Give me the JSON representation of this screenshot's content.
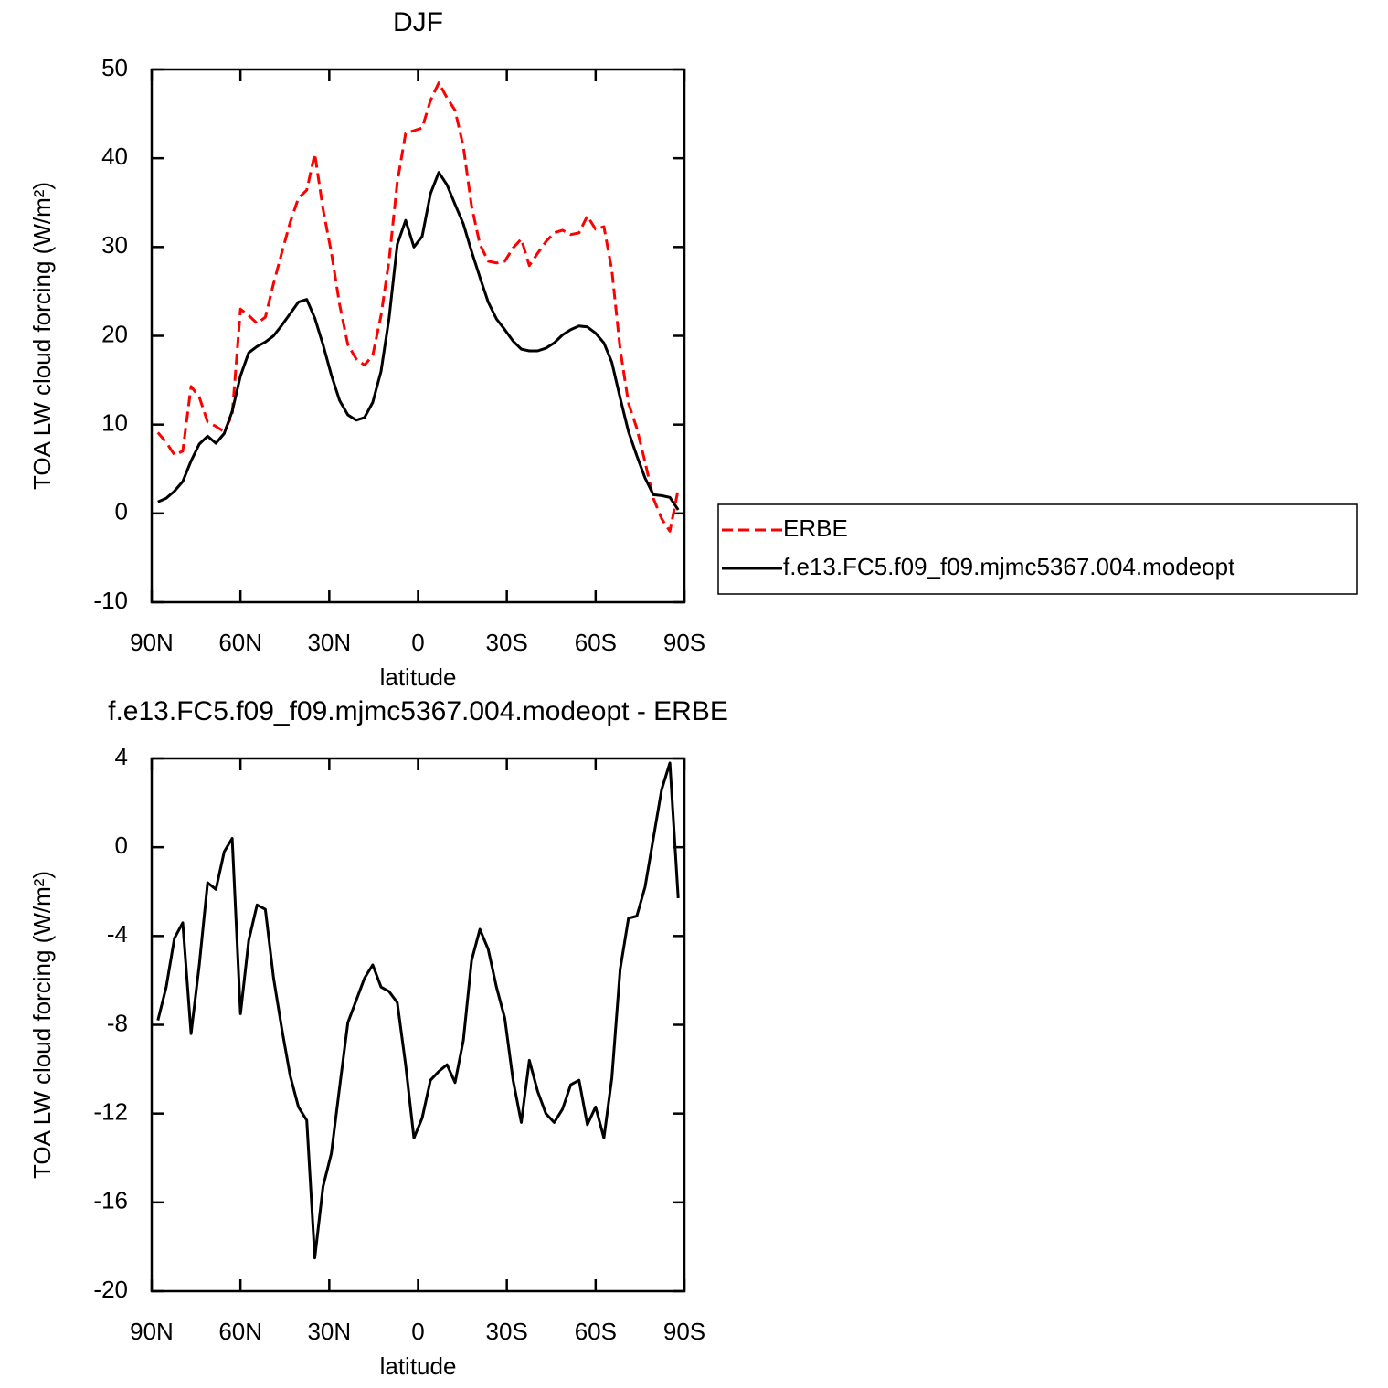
{
  "chart_data": [
    {
      "type": "line",
      "title": "DJF",
      "x": [
        87.9,
        85.1,
        82.3,
        79.5,
        76.7,
        73.9,
        71.1,
        68.3,
        65.5,
        62.8,
        60.0,
        57.2,
        54.4,
        51.6,
        48.8,
        46.0,
        43.2,
        40.4,
        37.6,
        34.9,
        32.1,
        29.3,
        26.5,
        23.7,
        20.9,
        18.1,
        15.3,
        12.5,
        9.8,
        7.0,
        4.2,
        1.4,
        -1.4,
        -4.2,
        -7.0,
        -9.8,
        -12.5,
        -15.3,
        -18.1,
        -20.9,
        -23.7,
        -26.5,
        -29.3,
        -32.1,
        -34.9,
        -37.6,
        -40.4,
        -43.2,
        -46.0,
        -48.8,
        -51.6,
        -54.4,
        -57.2,
        -60.0,
        -62.8,
        -65.5,
        -68.3,
        -71.1,
        -73.9,
        -76.7,
        -79.5,
        -82.3,
        -85.1,
        -87.9
      ],
      "xlim": [
        90,
        -90
      ],
      "xticks": [
        {
          "value": 90,
          "label": "90N"
        },
        {
          "value": 60,
          "label": "60N"
        },
        {
          "value": 30,
          "label": "30N"
        },
        0,
        {
          "value": -30,
          "label": "30S"
        },
        {
          "value": -60,
          "label": "60S"
        },
        {
          "value": -90,
          "label": "90S"
        }
      ],
      "ylim": [
        -10,
        50
      ],
      "yticks": [
        -10,
        0,
        10,
        20,
        30,
        40,
        50
      ],
      "xlabel": "latitude",
      "ylabel": "TOA LW cloud forcing (W/m²)",
      "legend": "outside-right",
      "series": [
        {
          "name": "ERBE",
          "color": "#ff0000",
          "line_style": "dashed",
          "values": [
            9.1,
            8.0,
            6.6,
            7.0,
            14.3,
            13.1,
            10.3,
            9.8,
            9.2,
            11.1,
            23.0,
            22.3,
            21.4,
            22.1,
            25.9,
            29.4,
            32.8,
            35.5,
            36.4,
            40.5,
            34.3,
            29.4,
            23.5,
            19.0,
            17.4,
            16.7,
            17.8,
            22.3,
            28.5,
            37.3,
            42.8,
            43.1,
            43.4,
            46.5,
            48.5,
            46.8,
            45.4,
            41.3,
            34.6,
            30.3,
            28.4,
            28.2,
            28.4,
            29.9,
            30.9,
            27.9,
            29.3,
            30.6,
            31.6,
            31.9,
            31.4,
            31.6,
            33.5,
            32.0,
            32.3,
            27.4,
            18.5,
            12.4,
            9.6,
            5.8,
            1.7,
            -0.6,
            -2.0,
            2.7
          ]
        },
        {
          "name": "f.e13.FC5.f09_f09.mjmc5367.004.modeopt",
          "color": "#000000",
          "line_style": "solid",
          "values": [
            1.3,
            1.7,
            2.5,
            3.6,
            5.9,
            7.8,
            8.7,
            7.9,
            9.0,
            11.5,
            15.5,
            18.1,
            18.8,
            19.3,
            20.0,
            21.2,
            22.5,
            23.8,
            24.1,
            22.0,
            19.0,
            15.6,
            12.7,
            11.1,
            10.5,
            10.8,
            12.5,
            16.0,
            22.0,
            30.3,
            33.0,
            30.0,
            31.2,
            36.0,
            38.4,
            37.0,
            34.8,
            32.6,
            29.5,
            26.6,
            23.8,
            21.9,
            20.7,
            19.4,
            18.5,
            18.3,
            18.3,
            18.6,
            19.2,
            20.1,
            20.7,
            21.1,
            21.0,
            20.3,
            19.2,
            17.0,
            13.0,
            9.2,
            6.5,
            4.0,
            2.1,
            2.0,
            1.8,
            0.4
          ]
        }
      ]
    },
    {
      "type": "line",
      "title": "f.e13.FC5.f09_f09.mjmc5367.004.modeopt - ERBE",
      "x": [
        87.9,
        85.1,
        82.3,
        79.5,
        76.7,
        73.9,
        71.1,
        68.3,
        65.5,
        62.8,
        60.0,
        57.2,
        54.4,
        51.6,
        48.8,
        46.0,
        43.2,
        40.4,
        37.6,
        34.9,
        32.1,
        29.3,
        26.5,
        23.7,
        20.9,
        18.1,
        15.3,
        12.5,
        9.8,
        7.0,
        4.2,
        1.4,
        -1.4,
        -4.2,
        -7.0,
        -9.8,
        -12.5,
        -15.3,
        -18.1,
        -20.9,
        -23.7,
        -26.5,
        -29.3,
        -32.1,
        -34.9,
        -37.6,
        -40.4,
        -43.2,
        -46.0,
        -48.8,
        -51.6,
        -54.4,
        -57.2,
        -60.0,
        -62.8,
        -65.5,
        -68.3,
        -71.1,
        -73.9,
        -76.7,
        -79.5,
        -82.3,
        -85.1,
        -87.9
      ],
      "xlim": [
        90,
        -90
      ],
      "xticks": [
        {
          "value": 90,
          "label": "90N"
        },
        {
          "value": 60,
          "label": "60N"
        },
        {
          "value": 30,
          "label": "30N"
        },
        0,
        {
          "value": -30,
          "label": "30S"
        },
        {
          "value": -60,
          "label": "60S"
        },
        {
          "value": -90,
          "label": "90S"
        }
      ],
      "ylim": [
        -20,
        4
      ],
      "yticks": [
        -20,
        -16,
        -12,
        -8,
        -4,
        0,
        4
      ],
      "xlabel": "latitude",
      "ylabel": "TOA LW cloud forcing (W/m²)",
      "series": [
        {
          "color": "#000000",
          "line_style": "solid",
          "values": [
            -7.8,
            -6.3,
            -4.1,
            -3.4,
            -8.4,
            -5.3,
            -1.6,
            -1.9,
            -0.2,
            0.4,
            -7.5,
            -4.2,
            -2.6,
            -2.8,
            -5.9,
            -8.2,
            -10.3,
            -11.7,
            -12.3,
            -18.5,
            -15.3,
            -13.8,
            -10.8,
            -7.9,
            -6.9,
            -5.9,
            -5.3,
            -6.3,
            -6.5,
            -7.0,
            -9.8,
            -13.1,
            -12.2,
            -10.5,
            -10.1,
            -9.8,
            -10.6,
            -8.7,
            -5.1,
            -3.7,
            -4.6,
            -6.3,
            -7.7,
            -10.5,
            -12.4,
            -9.6,
            -11.0,
            -12.0,
            -12.4,
            -11.8,
            -10.7,
            -10.5,
            -12.5,
            -11.7,
            -13.1,
            -10.4,
            -5.5,
            -3.2,
            -3.1,
            -1.8,
            0.4,
            2.6,
            3.8,
            -2.3
          ]
        }
      ]
    }
  ]
}
